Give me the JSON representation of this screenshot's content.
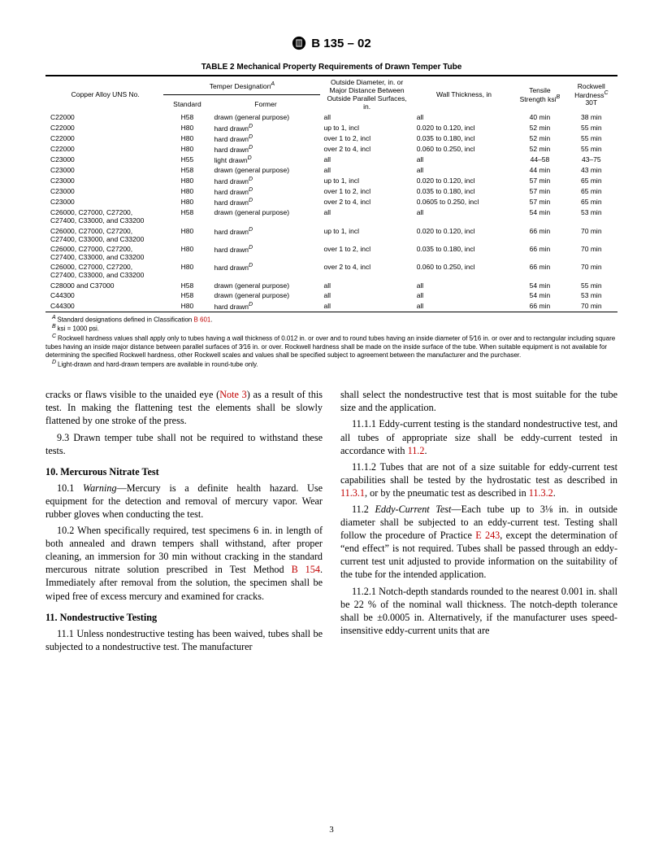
{
  "header": {
    "docnum": "B 135 – 02"
  },
  "table": {
    "title": "TABLE 2  Mechanical Property Requirements of Drawn Temper Tube",
    "col_headers": {
      "alloy": "Copper Alloy UNS No.",
      "temper_group": "Temper Designation",
      "temper_sup": "A",
      "std": "Standard",
      "former": "Former",
      "od": "Outside Diameter, in. or Major Distance Between Outside Parallel Surfaces, in.",
      "wall": "Wall Thickness, in",
      "ts": "Tensile Strength ksi",
      "ts_sup": "B",
      "rh": "Rockwell Hardness",
      "rh_sup": "C",
      "rh_sub": "30T"
    },
    "rows": [
      {
        "g": 0,
        "alloy": "C22000",
        "std": "H58",
        "former": "drawn (general purpose)",
        "fs": "",
        "od": "all",
        "wall": "all",
        "ts": "40 min",
        "rh": "38 min"
      },
      {
        "g": 0,
        "alloy": "C22000",
        "std": "H80",
        "former": "hard drawn",
        "fs": "D",
        "od": "up to 1, incl",
        "wall": "0.020 to 0.120, incl",
        "ts": "52 min",
        "rh": "55 min"
      },
      {
        "g": 0,
        "alloy": "C22000",
        "std": "H80",
        "former": "hard drawn",
        "fs": "D",
        "od": "over 1 to 2, incl",
        "wall": "0.035 to 0.180, incl",
        "ts": "52 min",
        "rh": "55 min"
      },
      {
        "g": 0,
        "alloy": "C22000",
        "std": "H80",
        "former": "hard drawn",
        "fs": "D",
        "od": "over 2 to 4, incl",
        "wall": "0.060 to 0.250, incl",
        "ts": "52 min",
        "rh": "55 min"
      },
      {
        "g": 1,
        "alloy": "C23000",
        "std": "H55",
        "former": "light drawn",
        "fs": "D",
        "od": "all",
        "wall": "all",
        "ts": "44–58",
        "rh": "43–75"
      },
      {
        "g": 1,
        "alloy": "C23000",
        "std": "H58",
        "former": "drawn (general purpose)",
        "fs": "",
        "od": "all",
        "wall": "all",
        "ts": "44 min",
        "rh": "43 min"
      },
      {
        "g": 1,
        "alloy": "C23000",
        "std": "H80",
        "former": "hard drawn",
        "fs": "D",
        "od": "up to 1, incl",
        "wall": "0.020 to 0.120, incl",
        "ts": "57 min",
        "rh": "65 min"
      },
      {
        "g": 1,
        "alloy": "C23000",
        "std": "H80",
        "former": "hard drawn",
        "fs": "D",
        "od": "over 1 to 2, incl",
        "wall": "0.035 to 0.180, incl",
        "ts": "57 min",
        "rh": "65 min"
      },
      {
        "g": 1,
        "alloy": "C23000",
        "std": "H80",
        "former": "hard drawn",
        "fs": "D",
        "od": "over 2 to 4, incl",
        "wall": "0.0605 to 0.250, incl",
        "ts": "57 min",
        "rh": "65 min"
      },
      {
        "g": 2,
        "alloy": "C26000, C27000, C27200, C27400, C33000, and C33200",
        "std": "H58",
        "former": "drawn (general purpose)",
        "fs": "",
        "od": "all",
        "wall": "all",
        "ts": "54 min",
        "rh": "53 min"
      },
      {
        "g": 2,
        "alloy": "C26000, C27000, C27200, C27400, C33000, and C33200",
        "std": "H80",
        "former": "hard drawn",
        "fs": "D",
        "od": "up to 1, incl",
        "wall": "0.020 to 0.120, incl",
        "ts": "66 min",
        "rh": "70 min"
      },
      {
        "g": 2,
        "alloy": "C26000, C27000, C27200, C27400, C33000, and C33200",
        "std": "H80",
        "former": "hard drawn",
        "fs": "D",
        "od": "over 1 to 2, incl",
        "wall": "0.035 to 0.180, incl",
        "ts": "66 min",
        "rh": "70 min"
      },
      {
        "g": 2,
        "alloy": "C26000, C27000, C27200, C27400, C33000, and C33200",
        "std": "H80",
        "former": "hard drawn",
        "fs": "D",
        "od": "over 2 to 4, incl",
        "wall": "0.060 to 0.250, incl",
        "ts": "66 min",
        "rh": "70 min"
      },
      {
        "g": 3,
        "alloy": "C28000 and C37000",
        "std": "H58",
        "former": "drawn (general purpose)",
        "fs": "",
        "od": "all",
        "wall": "all",
        "ts": "54 min",
        "rh": "55 min"
      },
      {
        "g": 4,
        "alloy": "C44300",
        "std": "H58",
        "former": "drawn (general purpose)",
        "fs": "",
        "od": "all",
        "wall": "all",
        "ts": "54 min",
        "rh": "53 min"
      },
      {
        "g": 4,
        "alloy": "C44300",
        "std": "H80",
        "former": "hard drawn",
        "fs": "D",
        "od": "all",
        "wall": "all",
        "ts": "66 min",
        "rh": "70 min"
      }
    ]
  },
  "footnotes": {
    "A_pre": "Standard designations defined in Classification ",
    "A_ref": "B 601",
    "A_post": ".",
    "B": "ksi = 1000 psi.",
    "C": "Rockwell hardness values shall apply only to tubes having a wall thickness of 0.012 in. or over and to round tubes having an inside diameter of 5⁄16 in. or over and to rectangular including square tubes having an inside major distance between parallel surfaces of 3⁄16 in. or over. Rockwell hardness shall be made on the inside surface of the tube. When suitable equipment is not available for determining the specified Rockwell hardness, other Rockwell scales and values shall be specified subject to agreement between the manufacturer and the purchaser.",
    "D": "Light-drawn and hard-drawn tempers are available in round-tube only."
  },
  "body": {
    "left": {
      "p1a": "cracks or flaws visible to the unaided eye (",
      "p1ref": "Note 3",
      "p1b": ") as a result of this test. In making the flattening test the elements shall be slowly flattened by one stroke of the press.",
      "p2": "9.3 Drawn temper tube shall not be required to withstand these tests.",
      "h10": "10. Mercurous Nitrate Test",
      "p3a": "10.1 ",
      "p3b": "Warning",
      "p3c": "—Mercury is a definite health hazard. Use equipment for the detection and removal of mercury vapor. Wear rubber gloves when conducting the test.",
      "p4a": "10.2 When specifically required, test specimens 6 in. in length of both annealed and drawn tempers shall withstand, after proper cleaning, an immersion for 30 min without cracking in the standard mercurous nitrate solution prescribed in Test Method ",
      "p4ref": "B 154",
      "p4b": ". Immediately after removal from the solution, the specimen shall be wiped free of excess mercury and examined for cracks.",
      "h11": "11. Nondestructive Testing",
      "p5": "11.1 Unless nondestructive testing has been waived, tubes shall be subjected to a nondestructive test. The manufacturer"
    },
    "right": {
      "p1": "shall select the nondestructive test that is most suitable for the tube size and the application.",
      "p2a": "11.1.1 Eddy-current testing is the standard nondestructive test, and all tubes of appropriate size shall be eddy-current tested in accordance with ",
      "p2ref": "11.2",
      "p2b": ".",
      "p3a": "11.1.2 Tubes that are not of a size suitable for eddy-current test capabilities shall be tested by the hydrostatic test as described in ",
      "p3ref1": "11.3.1",
      "p3mid": ", or by the pneumatic test as described in ",
      "p3ref2": "11.3.2",
      "p3b": ".",
      "p4a": "11.2 ",
      "p4b": "Eddy-Current Test",
      "p4c": "—Each tube up to 3⅛ in. in outside diameter shall be subjected to an eddy-current test. Testing shall follow the procedure of Practice ",
      "p4ref": "E 243",
      "p4d": ", except the determination of “end effect” is not required. Tubes shall be passed through an eddy-current test unit adjusted to provide information on the suitability of the tube for the intended application.",
      "p5": "11.2.1 Notch-depth standards rounded to the nearest 0.001 in. shall be 22 % of the nominal wall thickness. The notch-depth tolerance shall be ±0.0005 in. Alternatively, if the manufacturer uses speed-insensitive eddy-current units that are"
    }
  },
  "pagenum": "3"
}
